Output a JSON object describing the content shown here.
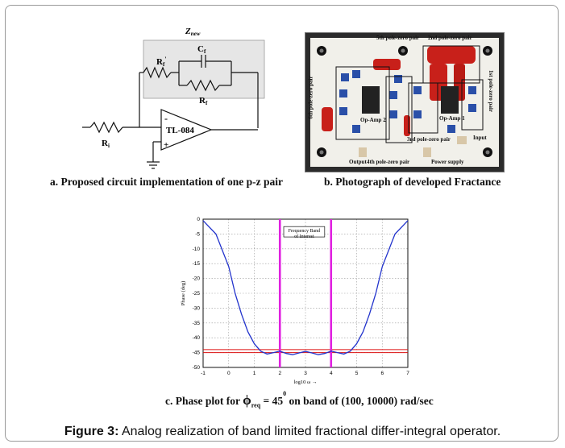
{
  "panel_a": {
    "znew": "Z",
    "znew_sub": "new",
    "rf_prime": "R",
    "rf_prime_sub": "f",
    "rf_prime_sup": "'",
    "cf": "C",
    "cf_sub": "f",
    "rf": "R",
    "rf_sub": "f",
    "ri": "R",
    "ri_sub": "i",
    "opamp": "TL-084",
    "minus": "-",
    "plus": "+",
    "label": "a. Proposed circuit implementation of one p-z pair"
  },
  "panel_b": {
    "label": "b. Photograph of developed Fractance",
    "pair5": "5th pole-zero pair",
    "pair2": "2nd pole-zero pair",
    "pair6": "6th pole-zero pair",
    "pair1": "1st pole-zero pair",
    "opamp2": "Op-Amp 2",
    "opamp1": "Op-Amp 1",
    "pair3": "3rd pole-zero pair",
    "pair4": "4th pole-zero pair",
    "output": "Output",
    "power": "Power supply",
    "input": "Input"
  },
  "panel_c": {
    "label_prefix": "c. Phase plot for ",
    "phi": "ϕ",
    "phi_sub": "req",
    "label_mid": " = 45",
    "degree": "0",
    "label_suffix": " on band of (100, 10000) rad/sec"
  },
  "chart_data": {
    "type": "line",
    "title": "",
    "xlabel": "log10 ω →",
    "ylabel": "Phase (deg)",
    "xlim": [
      -1,
      7
    ],
    "ylim": [
      -50,
      0
    ],
    "xticks": [
      "-1",
      "0",
      "1",
      "2",
      "3",
      "4",
      "5",
      "6",
      "7"
    ],
    "yticks": [
      "0",
      "-5",
      "-10",
      "-15",
      "-20",
      "-25",
      "-30",
      "-35",
      "-40",
      "-45",
      "-50"
    ],
    "grid": true,
    "annotation": "Frequency Band of Interest",
    "vertical_lines": [
      2,
      4
    ],
    "horizontal_lines": [
      -44,
      -45
    ],
    "series": [
      {
        "x": [
          -1,
          -0.5,
          0,
          0.25,
          0.5,
          0.75,
          1,
          1.25,
          1.5,
          1.75,
          2,
          2.25,
          2.5,
          2.75,
          3,
          3.25,
          3.5,
          3.75,
          4,
          4.25,
          4.5,
          4.75,
          5,
          5.25,
          5.5,
          5.75,
          6,
          6.5,
          7
        ],
        "y": [
          -0.5,
          -5,
          -16,
          -25,
          -32,
          -38,
          -42,
          -44.5,
          -45.5,
          -45,
          -44.5,
          -45.3,
          -45.7,
          -45.1,
          -44.6,
          -45.1,
          -45.7,
          -45.3,
          -44.5,
          -45,
          -45.5,
          -44.5,
          -42,
          -38,
          -32,
          -25,
          -16,
          -5,
          -0.5
        ]
      }
    ]
  }
}
